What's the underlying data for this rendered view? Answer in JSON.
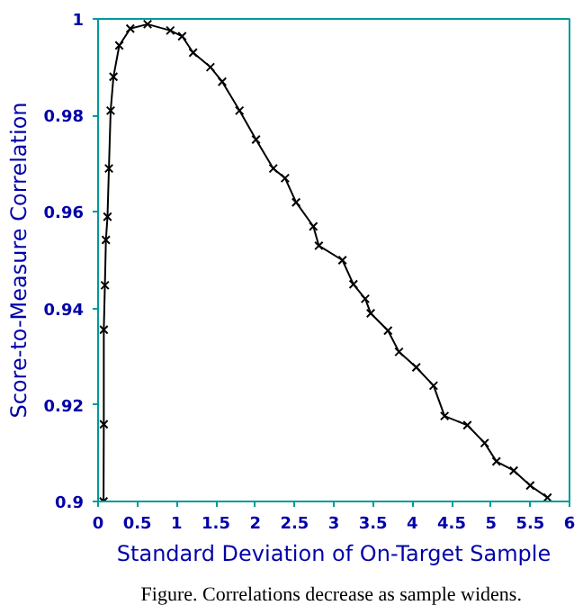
{
  "chart_data": {
    "type": "line",
    "xlabel": "Standard Deviation of On-Target Sample",
    "ylabel": "Score-to-Measure Correlation",
    "annotations": [
      "Figure.  Correlations decrease as sample widens."
    ],
    "x": [
      0.07,
      0.073,
      0.073,
      0.087,
      0.1,
      0.12,
      0.138,
      0.16,
      0.196,
      0.27,
      0.41,
      0.63,
      0.92,
      1.07,
      1.21,
      1.43,
      1.58,
      1.8,
      2.01,
      2.23,
      2.38,
      2.52,
      2.74,
      2.81,
      3.11,
      3.25,
      3.4,
      3.47,
      3.69,
      3.83,
      4.05,
      4.27,
      4.41,
      4.7,
      4.92,
      5.07,
      5.29,
      5.5,
      5.72
    ],
    "series": [
      {
        "color": "#000000",
        "values": [
          0.9,
          0.916,
          0.9356,
          0.9448,
          0.9542,
          0.959,
          0.969,
          0.981,
          0.988,
          0.9945,
          0.998,
          0.9989,
          0.9976,
          0.9964,
          0.993,
          0.99,
          0.987,
          0.981,
          0.975,
          0.969,
          0.967,
          0.962,
          0.957,
          0.953,
          0.95,
          0.945,
          0.942,
          0.939,
          0.9354,
          0.931,
          0.9278,
          0.924,
          0.9177,
          0.9158,
          0.9121,
          0.9083,
          0.9064,
          0.9033,
          0.9008
        ]
      }
    ],
    "xlim": [
      0,
      6
    ],
    "ylim": [
      0.9,
      1
    ],
    "xticks": [
      0,
      0.5,
      1,
      1.5,
      2,
      2.5,
      3,
      3.5,
      4,
      4.5,
      5,
      5.5,
      6
    ],
    "yticks": [
      0.9,
      0.92,
      0.94,
      0.96,
      0.98,
      1
    ],
    "grid": false,
    "marker": "cross",
    "line_style": "solid"
  }
}
